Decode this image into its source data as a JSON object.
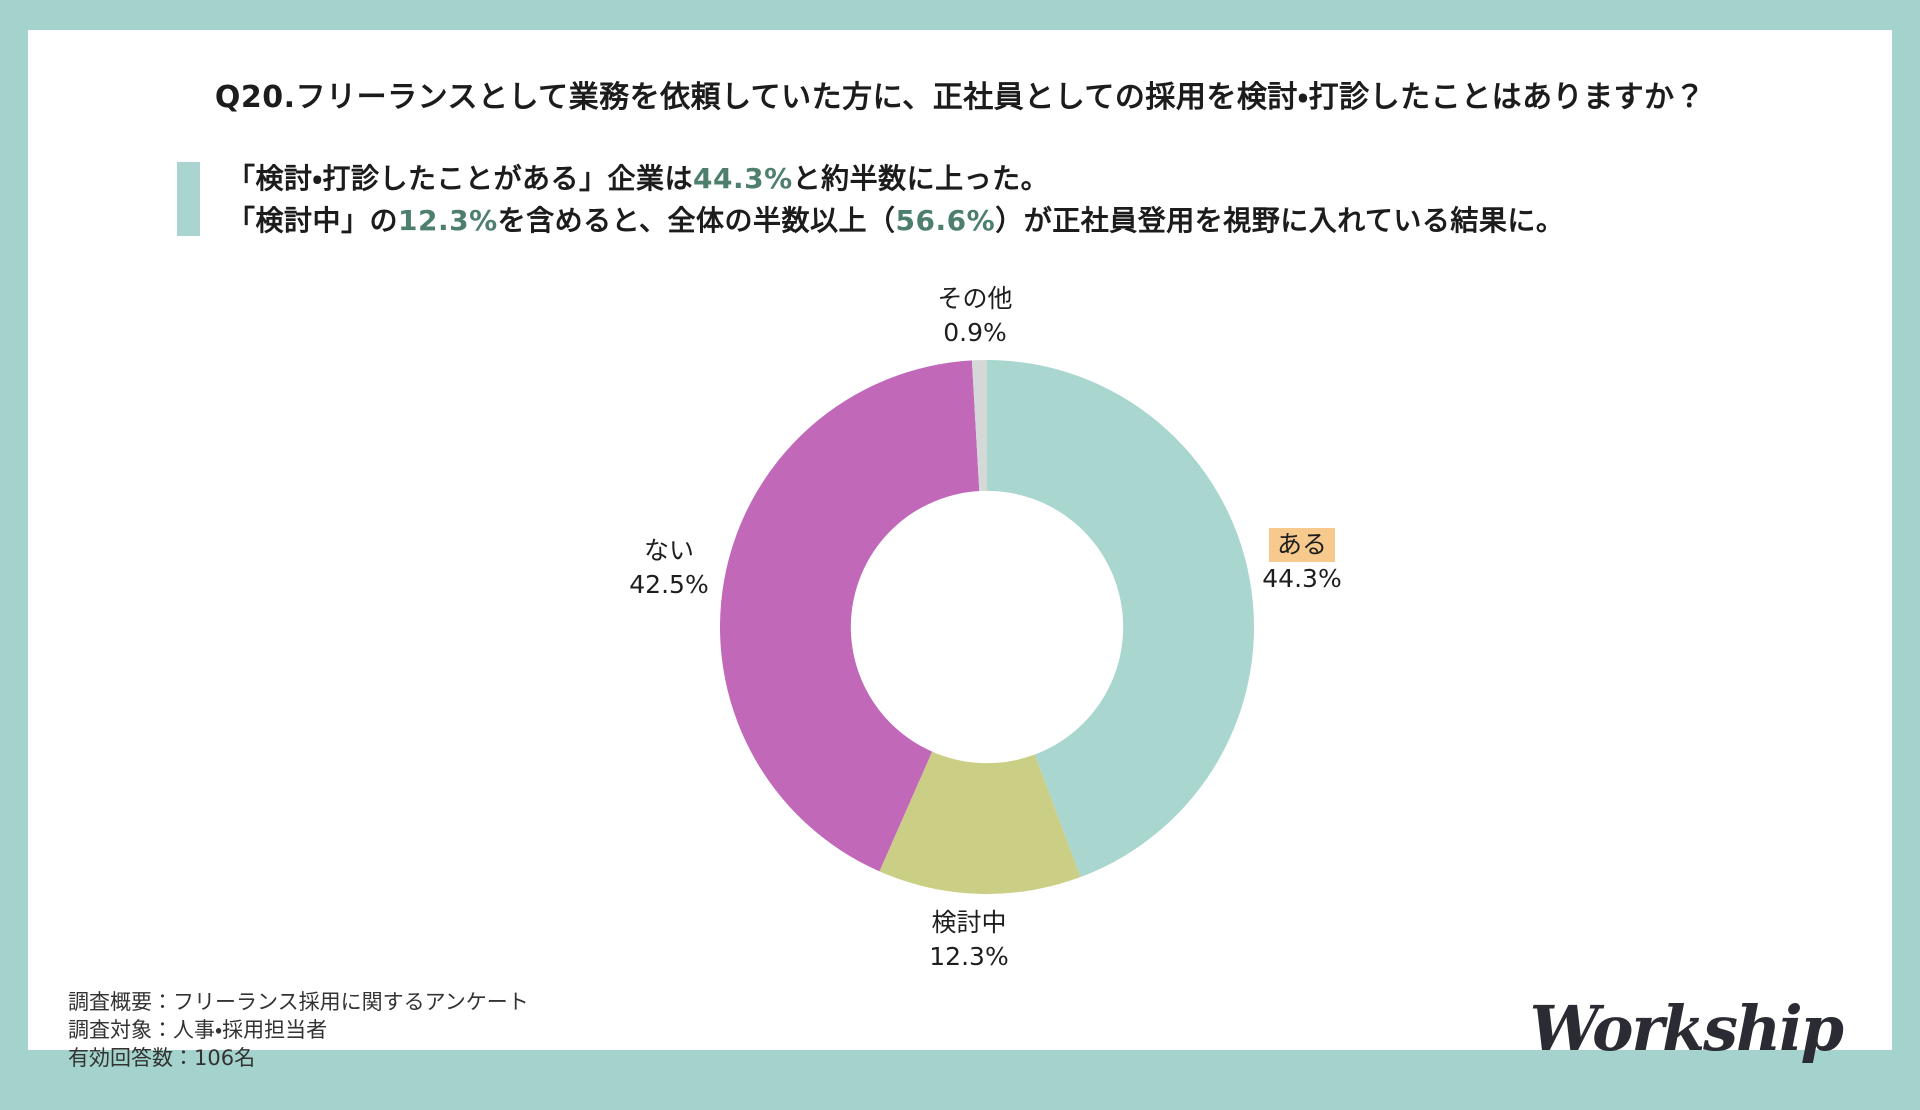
{
  "colors": {
    "frame": "#a3d3cc",
    "accent_bar": "#a9d4cf",
    "green_text": "#4d7f6c",
    "label_highlight": "#f8c98c",
    "logo_color": "#2b2b33"
  },
  "header": {
    "title": "Q20.フリーランスとして業務を依頼していた方に、正社員としての採用を検討・打診したことはありますか？"
  },
  "summary": {
    "line1": {
      "pre": "「検討・打診したことがある」企業は",
      "value": "44.3%",
      "post": "と約半数に上った。"
    },
    "line2": {
      "pre": "「検討中」の",
      "value1": "12.3%",
      "mid": "を含めると、全体の半数以上（",
      "value2": "56.6%",
      "post": "）が正社員登用を視野に入れている結果に。"
    }
  },
  "chart_data": {
    "type": "pie",
    "style": "donut",
    "title": "Q20.フリーランスとして業務を依頼していた方に、正社員としての採用を検討・打診したことはありますか？",
    "start_angle_deg": 0,
    "direction": "clockwise",
    "inner_radius_ratio": 0.51,
    "legend_position": "labels-around-chart",
    "segments": [
      {
        "key": "aru",
        "label": "ある",
        "value": 44.3,
        "pct": "44.3%",
        "color": "#a9d6cf",
        "highlighted": true
      },
      {
        "key": "kentochu",
        "label": "検討中",
        "value": 12.3,
        "pct": "12.3%",
        "color": "#cbcf86",
        "highlighted": false
      },
      {
        "key": "nai",
        "label": "ない",
        "value": 42.5,
        "pct": "42.5%",
        "color": "#c168b9",
        "highlighted": false
      },
      {
        "key": "sonota",
        "label": "その他",
        "value": 0.9,
        "pct": "0.9%",
        "color": "#d4d8d7",
        "highlighted": false
      }
    ]
  },
  "footer": {
    "survey_overview": "調査概要：フリーランス採用に関するアンケート",
    "survey_target": "調査対象：人事・採用担当者",
    "valid_responses": "有効回答数：106名"
  },
  "logo": {
    "text": "Workship"
  }
}
